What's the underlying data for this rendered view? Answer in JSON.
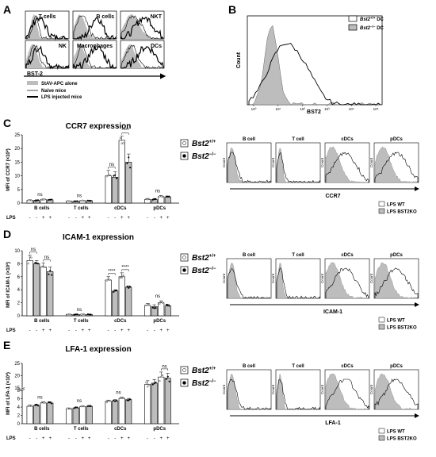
{
  "panels": {
    "A": {
      "letter": "A",
      "cells": [
        "T cells",
        "B cells",
        "NKT",
        "NK",
        "Macrophages",
        "DCs"
      ],
      "axis_label": "BST-2",
      "legend": [
        "StAV-APC alone",
        "Naive mice",
        "LPS injected mice"
      ]
    },
    "B": {
      "letter": "B",
      "ylabel": "Count",
      "xlabel": "BST2",
      "x_ticks": [
        "10⁰",
        "10¹",
        "10²",
        "10³",
        "10⁴",
        "10⁵"
      ],
      "legend": [
        {
          "base": "Bst2",
          "sup": "+/+",
          "suffix": " DC"
        },
        {
          "base": "Bst2",
          "sup": "−/−",
          "suffix": " DC"
        }
      ]
    },
    "C": {
      "letter": "C",
      "title": "CCR7 expression",
      "ylabel": "MFI of CCR7 (×10²)",
      "hist_xlabel": "CCR7"
    },
    "D": {
      "letter": "D",
      "title": "ICAM-1 expression",
      "ylabel": "MFI of ICAM-1 (×10³)",
      "hist_xlabel": "ICAM-1"
    },
    "E": {
      "letter": "E",
      "title": "LFA-1 expression",
      "ylabel": "MFI of LFA-1 (×10³)",
      "hist_xlabel": "LFA-1"
    }
  },
  "shared": {
    "groups": [
      "B cells",
      "T cells",
      "cDCs",
      "pDCs"
    ],
    "hist_groups": [
      "B cell",
      "T cell",
      "cDCs",
      "pDCs"
    ],
    "lps_label": "LPS",
    "lps_signs": [
      "-",
      "-",
      "+",
      "+"
    ],
    "genotype_legend": [
      {
        "base": "Bst2",
        "sup": "+/+"
      },
      {
        "base": "Bst2",
        "sup": "−/−"
      }
    ],
    "hist_legend": [
      "LPS WT",
      "LPS BST2KO"
    ],
    "hist_ylabel": "Count"
  },
  "chart_data": [
    {
      "type": "bar",
      "ref": "C",
      "categories": [
        "B cells",
        "T cells",
        "cDCs",
        "pDCs"
      ],
      "bars_per_group": [
        "- Bst2+/+",
        "- Bst2-/-",
        "+ Bst2+/+",
        "+ Bst2-/-"
      ],
      "ylim": [
        0,
        25
      ],
      "yticks": [
        0,
        5,
        10,
        15,
        20,
        25
      ],
      "values": [
        [
          1,
          1,
          1.3,
          1.2
        ],
        [
          0.7,
          0.7,
          0.9,
          0.9
        ],
        [
          10,
          9.5,
          23,
          15
        ],
        [
          1.3,
          1.3,
          2.4,
          2.2
        ]
      ],
      "errors": [
        [
          0.2,
          0.2,
          0.2,
          0.2
        ],
        [
          0.1,
          0.1,
          0.1,
          0.1
        ],
        [
          2,
          2,
          1.5,
          3
        ],
        [
          0.4,
          0.4,
          0.4,
          0.4
        ]
      ],
      "annotations": [
        {
          "group": 0,
          "text": "ns"
        },
        {
          "group": 1,
          "text": "ns"
        },
        {
          "group": 2,
          "text": "ns",
          "between": [
            0,
            1
          ]
        },
        {
          "group": 2,
          "text": "****",
          "between": [
            2,
            3
          ]
        },
        {
          "group": 3,
          "text": "ns"
        }
      ]
    },
    {
      "type": "bar",
      "ref": "D",
      "categories": [
        "B cells",
        "T cells",
        "cDCs",
        "pDCs"
      ],
      "bars_per_group": [
        "- Bst2+/+",
        "- Bst2-/-",
        "+ Bst2+/+",
        "+ Bst2-/-"
      ],
      "ylim": [
        0,
        10
      ],
      "yticks": [
        0,
        2,
        4,
        6,
        8,
        10
      ],
      "values": [
        [
          8.5,
          8,
          7.5,
          6.8
        ],
        [
          0.2,
          0.2,
          0.2,
          0.2
        ],
        [
          5.5,
          3.8,
          6,
          4.4
        ],
        [
          1.6,
          1.4,
          2,
          1.5
        ]
      ],
      "errors": [
        [
          0.8,
          0.5,
          0.6,
          0.7
        ],
        [
          0.05,
          0.05,
          0.05,
          0.05
        ],
        [
          0.5,
          0.2,
          0.6,
          0.2
        ],
        [
          0.3,
          0.3,
          0.3,
          0.3
        ]
      ],
      "annotations": [
        {
          "group": 0,
          "text": "ns",
          "between": [
            0,
            1
          ]
        },
        {
          "group": 0,
          "text": "ns",
          "between": [
            2,
            3
          ]
        },
        {
          "group": 1,
          "text": "ns"
        },
        {
          "group": 2,
          "text": "****",
          "between": [
            0,
            1
          ]
        },
        {
          "group": 2,
          "text": "****",
          "between": [
            2,
            3
          ]
        },
        {
          "group": 3,
          "text": "ns"
        }
      ]
    },
    {
      "type": "bar",
      "ref": "E",
      "categories": [
        "B cells",
        "T cells",
        "cDCs",
        "pDCs"
      ],
      "bars_per_group": [
        "- Bst2+/+",
        "- Bst2-/-",
        "+ Bst2+/+",
        "+ Bst2-/-"
      ],
      "ylim": [
        0,
        25
      ],
      "yticks": [
        0,
        2,
        4,
        6,
        8,
        15,
        20,
        25
      ],
      "y_axis_break": [
        8,
        15
      ],
      "values": [
        [
          4.2,
          4.4,
          5.0,
          5.0
        ],
        [
          3.6,
          3.8,
          4.1,
          4.2
        ],
        [
          5.4,
          5.5,
          6.1,
          5.8
        ],
        [
          16.5,
          17,
          19.5,
          19
        ]
      ],
      "errors": [
        [
          0.3,
          0.3,
          0.3,
          0.3
        ],
        [
          0.2,
          0.2,
          0.2,
          0.2
        ],
        [
          0.3,
          0.3,
          0.3,
          0.3
        ],
        [
          1.5,
          1.5,
          2,
          2
        ]
      ],
      "annotations": [
        {
          "group": 0,
          "text": "ns"
        },
        {
          "group": 1,
          "text": "ns"
        },
        {
          "group": 2,
          "text": "ns"
        },
        {
          "group": 3,
          "text": "ns",
          "between": [
            2,
            3
          ]
        }
      ]
    }
  ]
}
